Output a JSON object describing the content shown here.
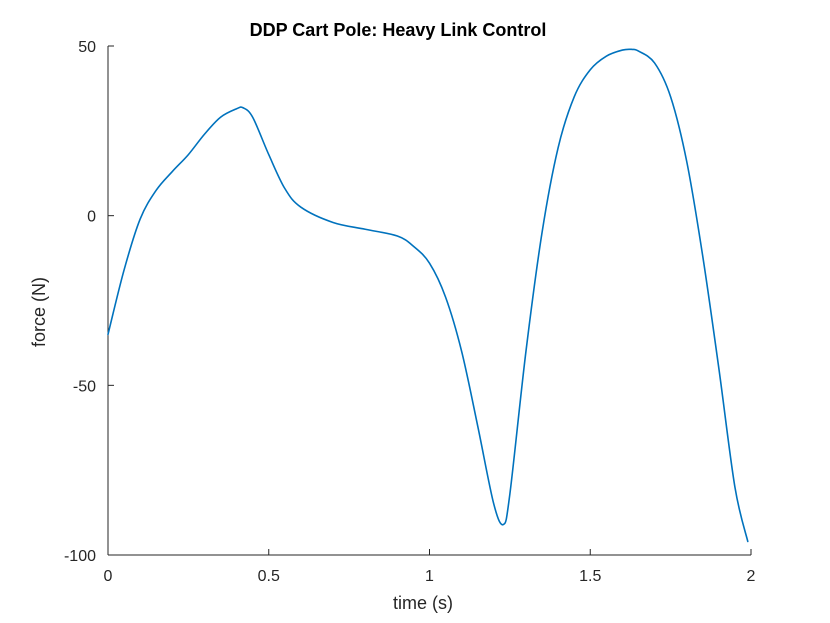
{
  "chart_data": {
    "type": "line",
    "title": "DDP Cart Pole: Heavy Link Control",
    "xlabel": "time (s)",
    "ylabel": "force (N)",
    "xlim": [
      0,
      2
    ],
    "ylim": [
      -100,
      50
    ],
    "xticks": [
      0,
      0.5,
      1,
      1.5,
      2
    ],
    "xtick_labels": [
      "0",
      "0.5",
      "1",
      "1.5",
      "2"
    ],
    "yticks": [
      50,
      0,
      -50,
      -100
    ],
    "ytick_labels": [
      "50",
      "0",
      "-50",
      "-100"
    ],
    "grid": false,
    "box": false,
    "series": [
      {
        "color": "#0072BD",
        "x": [
          0,
          0.05,
          0.1,
          0.15,
          0.2,
          0.25,
          0.3,
          0.35,
          0.4,
          0.42,
          0.45,
          0.5,
          0.55,
          0.6,
          0.7,
          0.8,
          0.9,
          0.95,
          1.0,
          1.05,
          1.1,
          1.15,
          1.2,
          1.23,
          1.25,
          1.3,
          1.35,
          1.4,
          1.45,
          1.5,
          1.55,
          1.6,
          1.63,
          1.65,
          1.7,
          1.75,
          1.8,
          1.85,
          1.9,
          1.95,
          1.99
        ],
        "y": [
          -35,
          -16,
          -1,
          7.5,
          13,
          18,
          24,
          29,
          31.5,
          31.8,
          29,
          18,
          8,
          2.5,
          -2,
          -4,
          -6,
          -9,
          -14,
          -24,
          -40,
          -62,
          -85,
          -91,
          -82,
          -40,
          -5,
          20,
          35,
          43,
          47,
          48.8,
          49,
          48.5,
          45,
          35,
          16,
          -12,
          -45,
          -80,
          -96
        ]
      }
    ]
  }
}
